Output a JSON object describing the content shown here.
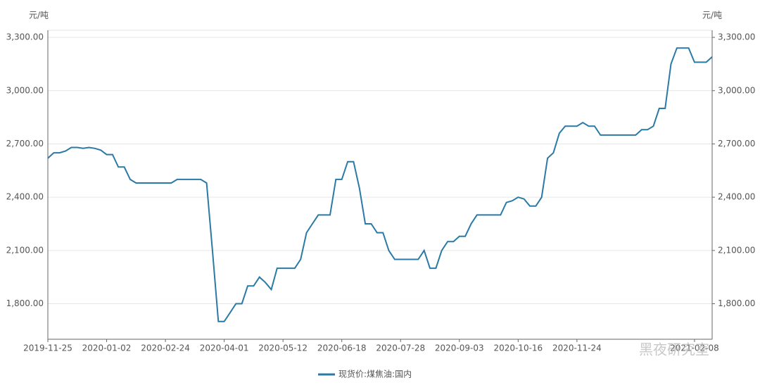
{
  "chart_data": {
    "type": "line",
    "y_unit": "元/吨",
    "y2_unit": "元/吨",
    "watermark": "黑夜研究室",
    "categories": [
      "2019-11-25",
      null,
      null,
      null,
      null,
      null,
      null,
      null,
      null,
      null,
      "2020-01-02",
      null,
      null,
      null,
      null,
      null,
      null,
      null,
      null,
      null,
      "2020-02-24",
      null,
      null,
      null,
      null,
      null,
      null,
      null,
      null,
      null,
      "2020-04-01",
      null,
      null,
      null,
      null,
      null,
      null,
      null,
      null,
      null,
      "2020-05-12",
      null,
      null,
      null,
      null,
      null,
      null,
      null,
      null,
      null,
      "2020-06-18",
      null,
      null,
      null,
      null,
      null,
      null,
      null,
      null,
      null,
      "2020-07-28",
      null,
      null,
      null,
      null,
      null,
      null,
      null,
      null,
      null,
      "2020-09-03",
      null,
      null,
      null,
      null,
      null,
      null,
      null,
      null,
      null,
      "2020-10-16",
      null,
      null,
      null,
      null,
      null,
      null,
      null,
      null,
      null,
      "2020-11-24",
      null,
      null,
      null,
      null,
      null,
      null,
      null,
      null,
      null,
      null,
      null,
      null,
      null,
      null,
      null,
      null,
      null,
      null,
      null,
      "2021-02-08",
      null,
      null,
      null
    ],
    "series": [
      {
        "name": "现货价:煤焦油:国内",
        "color": "#2a7aa6",
        "values": [
          2620,
          2650,
          2650,
          2660,
          2680,
          2680,
          2675,
          2680,
          2675,
          2665,
          2640,
          2640,
          2570,
          2570,
          2500,
          2480,
          2480,
          2480,
          2480,
          2480,
          2480,
          2480,
          2500,
          2500,
          2500,
          2500,
          2500,
          2480,
          2100,
          1700,
          1700,
          1750,
          1800,
          1800,
          1900,
          1900,
          1950,
          1920,
          1880,
          2000,
          2000,
          2000,
          2000,
          2050,
          2200,
          2250,
          2300,
          2300,
          2300,
          2500,
          2500,
          2600,
          2600,
          2450,
          2250,
          2250,
          2200,
          2200,
          2100,
          2050,
          2050,
          2050,
          2050,
          2050,
          2100,
          2000,
          2000,
          2100,
          2150,
          2150,
          2180,
          2180,
          2250,
          2300,
          2300,
          2300,
          2300,
          2300,
          2370,
          2380,
          2400,
          2390,
          2350,
          2350,
          2400,
          2620,
          2650,
          2760,
          2800,
          2800,
          2800,
          2820,
          2800,
          2800,
          2750,
          2750,
          2750,
          2750,
          2750,
          2750,
          2750,
          2780,
          2780,
          2800,
          2900,
          2900,
          3150,
          3240,
          3240,
          3240,
          3160,
          3160,
          3160,
          3190
        ]
      }
    ],
    "ylim": [
      1600,
      3340
    ],
    "yticks": [
      {
        "value": 1800,
        "label": "1,800.00"
      },
      {
        "value": 2100,
        "label": "2,100.00"
      },
      {
        "value": 2400,
        "label": "2,400.00"
      },
      {
        "value": 2700,
        "label": "2,700.00"
      },
      {
        "value": 3000,
        "label": "3,000.00"
      },
      {
        "value": 3300,
        "label": "3,300.00"
      }
    ],
    "y2lim": [
      1600,
      3340
    ],
    "y2ticks": [
      {
        "value": 1800,
        "label": "1,800.00"
      },
      {
        "value": 2100,
        "label": "2,100.00"
      },
      {
        "value": 2400,
        "label": "2,400.00"
      },
      {
        "value": 2700,
        "label": "2,700.00"
      },
      {
        "value": 3000,
        "label": "3,000.00"
      },
      {
        "value": 3300,
        "label": "3,300.00"
      }
    ],
    "grid": true,
    "legend": "bottom"
  }
}
